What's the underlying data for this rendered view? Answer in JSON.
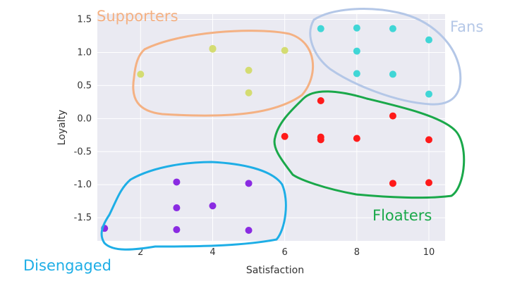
{
  "chart_data": {
    "type": "scatter",
    "xlabel": "Satisfaction",
    "ylabel": "Loyalty",
    "xlim": [
      0.8,
      10.45
    ],
    "ylim": [
      -1.85,
      1.58
    ],
    "x_ticks": [
      2,
      4,
      6,
      8,
      10
    ],
    "y_ticks": [
      -1.5,
      -1.0,
      -0.5,
      0.0,
      0.5,
      1.0,
      1.5
    ],
    "y_tick_labels": [
      "-1.5",
      "-1.0",
      "-0.5",
      "0.0",
      "0.5",
      "1.0",
      "1.5"
    ],
    "grid": true,
    "background": "#eaeaf2",
    "series": [
      {
        "name": "Supporters",
        "color": "#d4dc72",
        "outline_color": "#f4b183",
        "points": [
          [
            2,
            0.67
          ],
          [
            4,
            1.05
          ],
          [
            4,
            1.06
          ],
          [
            5,
            0.73
          ],
          [
            5,
            0.39
          ],
          [
            6,
            1.03
          ]
        ]
      },
      {
        "name": "Fans",
        "color": "#40d6d6",
        "outline_color": "#b4c7e7",
        "points": [
          [
            7,
            1.36
          ],
          [
            8,
            1.37
          ],
          [
            9,
            1.36
          ],
          [
            10,
            1.19
          ],
          [
            8,
            1.02
          ],
          [
            8,
            0.68
          ],
          [
            9,
            0.67
          ],
          [
            10,
            0.37
          ]
        ]
      },
      {
        "name": "Floaters",
        "color": "#ff1a1a",
        "outline_color": "#1aa84a",
        "points": [
          [
            7,
            0.27
          ],
          [
            9,
            0.04
          ],
          [
            6,
            -0.27
          ],
          [
            7,
            -0.28
          ],
          [
            7,
            -0.32
          ],
          [
            8,
            -0.3
          ],
          [
            10,
            -0.32
          ],
          [
            9,
            -0.98
          ],
          [
            10,
            -0.97
          ]
        ]
      },
      {
        "name": "Disengaged",
        "color": "#8a2be2",
        "outline_color": "#1eaee6",
        "points": [
          [
            1,
            -1.66
          ],
          [
            3,
            -0.96
          ],
          [
            3,
            -1.35
          ],
          [
            3,
            -1.68
          ],
          [
            4,
            -1.32
          ],
          [
            5,
            -0.98
          ],
          [
            5,
            -1.69
          ]
        ]
      }
    ]
  }
}
